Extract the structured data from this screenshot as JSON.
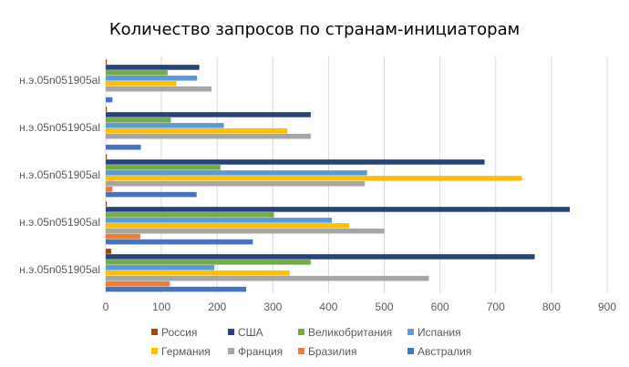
{
  "chart_data": {
    "type": "bar",
    "orientation": "horizontal",
    "title": "Количество запросов по странам-инициаторам",
    "xlabel": "",
    "ylabel": "",
    "xlim": [
      0,
      900
    ],
    "ticks": [
      "0",
      "100",
      "200",
      "300",
      "400",
      "500",
      "600",
      "700",
      "800",
      "900"
    ],
    "grid": true,
    "legend_position": "bottom",
    "categories": [
      "н.э.05n051905al",
      "н.э.05n051905al",
      "н.э.05n051905al",
      "н.э.05n051905al",
      "н.э.05n051905al"
    ],
    "series": [
      {
        "name": "Россия",
        "color": "#9e480e",
        "values": [
          10,
          2,
          2,
          2,
          2
        ]
      },
      {
        "name": "США",
        "color": "#264478",
        "values": [
          770,
          833,
          680,
          368,
          168
        ]
      },
      {
        "name": "Великобритания",
        "color": "#70ad47",
        "values": [
          368,
          302,
          206,
          117,
          111
        ]
      },
      {
        "name": "Испания",
        "color": "#5b9bd5",
        "values": [
          195,
          406,
          469,
          212,
          164
        ]
      },
      {
        "name": "Германия",
        "color": "#ffc000",
        "values": [
          330,
          437,
          747,
          326,
          127
        ]
      },
      {
        "name": "Франция",
        "color": "#a5a5a5",
        "values": [
          580,
          500,
          465,
          368,
          190
        ]
      },
      {
        "name": "Бразилия",
        "color": "#ed7d31",
        "values": [
          115,
          62,
          12,
          0,
          0
        ]
      },
      {
        "name": "Австралия",
        "color": "#4472c4",
        "values": [
          252,
          264,
          163,
          63,
          12
        ]
      }
    ],
    "legend_order": [
      "Россия",
      "США",
      "Великобритания",
      "Испания",
      "Германия",
      "Франция",
      "Бразилия",
      "Австралия"
    ]
  },
  "colors": {
    "gridline": "#d9d9d9",
    "axis_text": "#595959"
  }
}
